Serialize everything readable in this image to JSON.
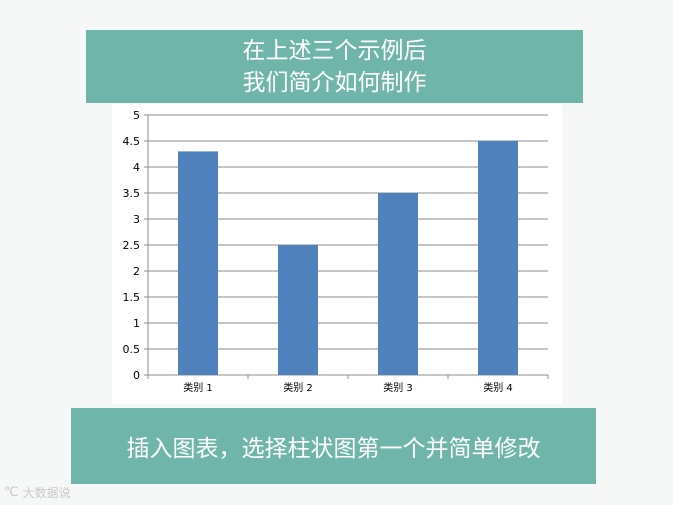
{
  "header": {
    "line1": "在上述三个示例后",
    "line2": "我们简介如何制作"
  },
  "footer": {
    "text": "插入图表，选择柱状图第一个并简单修改"
  },
  "watermark": {
    "text": "大数据说",
    "icon": "logo-icon"
  },
  "colors": {
    "banner": "#6fb5a9",
    "bar": "#4f81bd",
    "grid": "#8c8c8c"
  },
  "chart_data": {
    "type": "bar",
    "categories": [
      "类别 1",
      "类别 2",
      "类别 3",
      "类别 4"
    ],
    "values": [
      4.3,
      2.5,
      3.5,
      4.5
    ],
    "ylim": [
      0,
      5
    ],
    "yticks": [
      "0",
      "0.5",
      "1",
      "1.5",
      "2",
      "2.5",
      "3",
      "3.5",
      "4",
      "4.5",
      "5"
    ],
    "grid": true,
    "legend": "none"
  }
}
